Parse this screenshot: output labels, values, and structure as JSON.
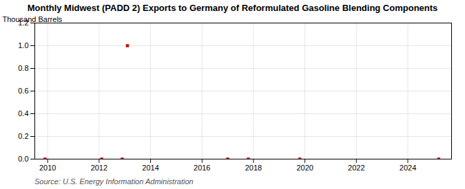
{
  "chart_data": {
    "type": "scatter",
    "title": "Monthly Midwest (PADD 2) Exports to Germany of Reformulated Gasoline Blending Components",
    "ylabel": "Thousand Barrels",
    "source": "Source: U.S. Energy Information Administration",
    "x": [
      2009.9,
      2012.1,
      2012.9,
      2013.1,
      2017.0,
      2017.8,
      2019.8,
      2025.2
    ],
    "values": [
      0.0,
      0.0,
      0.0,
      1.0,
      0.0,
      0.0,
      0.0,
      0.0
    ],
    "color": "#cc0000",
    "marker": "square",
    "xlim": [
      2009.5,
      2025.7
    ],
    "ylim": [
      0.0,
      1.2
    ],
    "xticks": [
      2010,
      2012,
      2014,
      2016,
      2018,
      2020,
      2022,
      2024
    ],
    "yticks": [
      {
        "value": 0,
        "label": "0.0"
      },
      0.2,
      0.4,
      0.6,
      0.8,
      {
        "value": 1,
        "label": "1.0"
      },
      1.2
    ],
    "grid": true
  }
}
